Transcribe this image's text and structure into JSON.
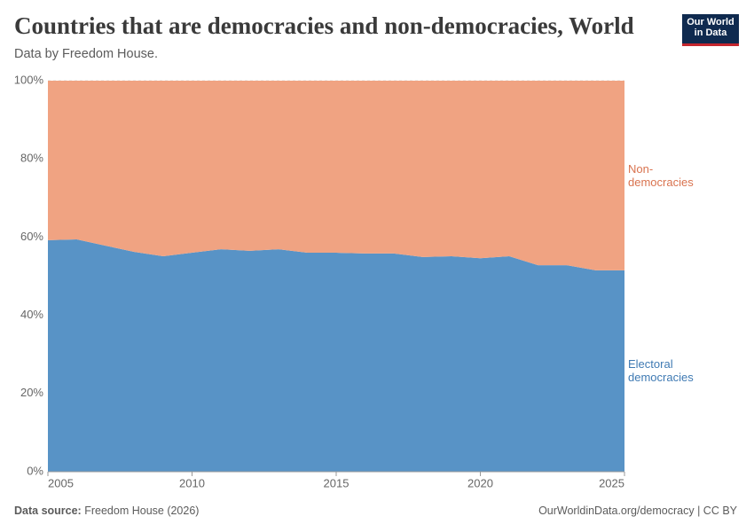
{
  "chart_data": {
    "type": "stacked_area",
    "title": "Countries that are democracies and non-democracies, World",
    "subtitle": "Data by Freedom House.",
    "logo": [
      "Our World",
      "in Data"
    ],
    "source_label": "Data source:",
    "source": "Freedom House (2026)",
    "credit": "OurWorldinData.org/democracy | CC BY",
    "x": [
      2005,
      2006,
      2007,
      2008,
      2009,
      2010,
      2011,
      2012,
      2013,
      2014,
      2015,
      2016,
      2017,
      2018,
      2019,
      2020,
      2021,
      2022,
      2023,
      2024,
      2025
    ],
    "series": [
      {
        "name": "Electoral democracies",
        "color": "#5893c6",
        "label_color": "#3f7ab3",
        "values": [
          59.2,
          59.4,
          57.8,
          56.2,
          55.1,
          56.0,
          56.9,
          56.5,
          56.9,
          56.0,
          56.0,
          55.8,
          55.8,
          54.9,
          55.1,
          54.6,
          55.1,
          52.8,
          52.8,
          51.5,
          51.5
        ]
      },
      {
        "name": "Non-democracies",
        "color": "#f0a382",
        "label_color": "#d9734f",
        "values": [
          40.8,
          40.6,
          42.2,
          43.8,
          44.9,
          44.0,
          43.1,
          43.5,
          43.1,
          44.0,
          44.0,
          44.2,
          44.2,
          45.1,
          44.9,
          45.4,
          44.9,
          47.2,
          47.2,
          48.5,
          48.5
        ]
      }
    ],
    "xlim": [
      2005,
      2025
    ],
    "xticks": [
      2005,
      2010,
      2015,
      2020,
      2025
    ],
    "ylim": [
      0,
      100
    ],
    "yticks": [
      {
        "value": 0,
        "label": "0%"
      },
      {
        "value": 20,
        "label": "20%"
      },
      {
        "value": 40,
        "label": "40%"
      },
      {
        "value": 60,
        "label": "60%"
      },
      {
        "value": 80,
        "label": "80%"
      },
      {
        "value": 100,
        "label": "100%"
      }
    ],
    "grid": true
  }
}
